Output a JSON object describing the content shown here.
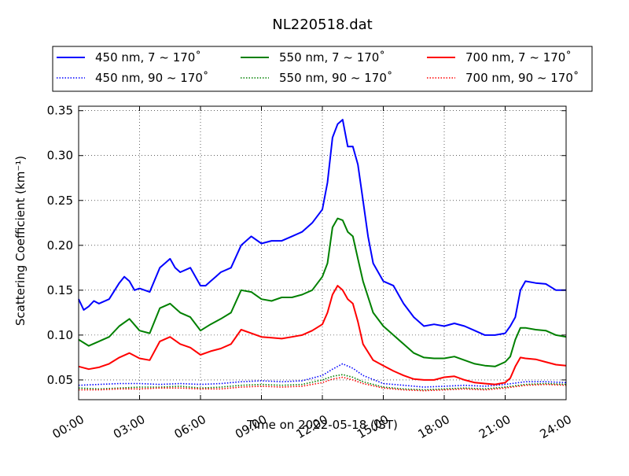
{
  "chart_data": {
    "type": "line",
    "title": "NL220518.dat",
    "xlabel": "Time on 2022-05-18 (JST)",
    "ylabel": "Scattering Coefficient (km⁻¹)",
    "xlim": [
      0,
      24
    ],
    "ylim": [
      0.028,
      0.355
    ],
    "xticks": [
      {
        "value": 0,
        "label": "00:00"
      },
      {
        "value": 3,
        "label": "03:00"
      },
      {
        "value": 6,
        "label": "06:00"
      },
      {
        "value": 9,
        "label": "09:00"
      },
      {
        "value": 12,
        "label": "12:00"
      },
      {
        "value": 15,
        "label": "15:00"
      },
      {
        "value": 18,
        "label": "18:00"
      },
      {
        "value": 21,
        "label": "21:00"
      },
      {
        "value": 24,
        "label": "24:00"
      }
    ],
    "yticks": [
      {
        "value": 0.05,
        "label": "0.05"
      },
      {
        "value": 0.1,
        "label": "0.10"
      },
      {
        "value": 0.15,
        "label": "0.15"
      },
      {
        "value": 0.2,
        "label": "0.20"
      },
      {
        "value": 0.25,
        "label": "0.25"
      },
      {
        "value": 0.3,
        "label": "0.30"
      },
      {
        "value": 0.35,
        "label": "0.35"
      }
    ],
    "grid": true,
    "legend_position": "top",
    "series": [
      {
        "name": "450 nm, 7 ~ 170˚",
        "color": "#0000ff",
        "style": "solid",
        "x": [
          0,
          0.25,
          0.5,
          0.75,
          1,
          1.5,
          2,
          2.25,
          2.5,
          2.75,
          3,
          3.5,
          4,
          4.25,
          4.5,
          4.75,
          5,
          5.5,
          6,
          6.25,
          6.5,
          6.75,
          7,
          7.5,
          8,
          8.5,
          9,
          9.5,
          10,
          10.5,
          11,
          11.5,
          12,
          12.25,
          12.5,
          12.75,
          13,
          13.25,
          13.5,
          13.75,
          14,
          14.25,
          14.5,
          15,
          15.5,
          16,
          16.5,
          17,
          17.5,
          18,
          18.5,
          19,
          19.5,
          20,
          20.5,
          21,
          21.25,
          21.5,
          21.75,
          22,
          22.5,
          23,
          23.5,
          24
        ],
        "y": [
          0.14,
          0.128,
          0.132,
          0.138,
          0.135,
          0.14,
          0.158,
          0.165,
          0.16,
          0.15,
          0.152,
          0.148,
          0.175,
          0.18,
          0.185,
          0.175,
          0.17,
          0.175,
          0.155,
          0.155,
          0.16,
          0.165,
          0.17,
          0.175,
          0.2,
          0.21,
          0.202,
          0.205,
          0.205,
          0.21,
          0.215,
          0.225,
          0.24,
          0.27,
          0.32,
          0.335,
          0.34,
          0.31,
          0.31,
          0.29,
          0.25,
          0.21,
          0.18,
          0.16,
          0.155,
          0.135,
          0.12,
          0.11,
          0.112,
          0.11,
          0.113,
          0.11,
          0.105,
          0.1,
          0.1,
          0.102,
          0.11,
          0.12,
          0.15,
          0.16,
          0.158,
          0.157,
          0.15,
          0.15
        ]
      },
      {
        "name": "450 nm, 90 ~ 170˚",
        "color": "#0000ff",
        "style": "dotted",
        "x": [
          0,
          1,
          2,
          3,
          4,
          5,
          6,
          7,
          8,
          9,
          10,
          11,
          12,
          12.5,
          13,
          13.5,
          14,
          15,
          16,
          17,
          18,
          19,
          20,
          21,
          22,
          23,
          24
        ],
        "y": [
          0.044,
          0.045,
          0.046,
          0.046,
          0.045,
          0.046,
          0.045,
          0.046,
          0.048,
          0.049,
          0.048,
          0.049,
          0.055,
          0.062,
          0.068,
          0.063,
          0.055,
          0.046,
          0.044,
          0.042,
          0.043,
          0.044,
          0.043,
          0.045,
          0.048,
          0.048,
          0.047
        ]
      },
      {
        "name": "550 nm, 7 ~ 170˚",
        "color": "#008000",
        "style": "solid",
        "x": [
          0,
          0.5,
          1,
          1.5,
          2,
          2.5,
          3,
          3.5,
          4,
          4.5,
          5,
          5.5,
          6,
          6.5,
          7,
          7.5,
          8,
          8.5,
          9,
          9.5,
          10,
          10.5,
          11,
          11.5,
          12,
          12.25,
          12.5,
          12.75,
          13,
          13.25,
          13.5,
          13.75,
          14,
          14.5,
          15,
          15.5,
          16,
          16.5,
          17,
          17.5,
          18,
          18.5,
          19,
          19.5,
          20,
          20.5,
          21,
          21.25,
          21.5,
          21.75,
          22,
          22.5,
          23,
          23.5,
          24
        ],
        "y": [
          0.095,
          0.088,
          0.093,
          0.098,
          0.11,
          0.118,
          0.105,
          0.102,
          0.13,
          0.135,
          0.125,
          0.12,
          0.105,
          0.112,
          0.118,
          0.125,
          0.15,
          0.148,
          0.14,
          0.138,
          0.142,
          0.142,
          0.145,
          0.15,
          0.165,
          0.18,
          0.22,
          0.23,
          0.228,
          0.215,
          0.21,
          0.185,
          0.16,
          0.125,
          0.11,
          0.1,
          0.09,
          0.08,
          0.075,
          0.074,
          0.074,
          0.076,
          0.072,
          0.068,
          0.066,
          0.065,
          0.07,
          0.076,
          0.095,
          0.108,
          0.108,
          0.106,
          0.105,
          0.1,
          0.098
        ]
      },
      {
        "name": "550 nm, 90 ~ 170˚",
        "color": "#008000",
        "style": "dotted",
        "x": [
          0,
          1,
          2,
          3,
          4,
          5,
          6,
          7,
          8,
          9,
          10,
          11,
          12,
          12.5,
          13,
          13.5,
          14,
          15,
          16,
          17,
          18,
          19,
          20,
          21,
          22,
          23,
          24
        ],
        "y": [
          0.041,
          0.04,
          0.041,
          0.042,
          0.042,
          0.043,
          0.041,
          0.042,
          0.044,
          0.045,
          0.044,
          0.045,
          0.05,
          0.054,
          0.056,
          0.053,
          0.048,
          0.042,
          0.04,
          0.039,
          0.04,
          0.041,
          0.04,
          0.042,
          0.045,
          0.046,
          0.045
        ]
      },
      {
        "name": "700 nm, 7 ~ 170˚",
        "color": "#ff0000",
        "style": "solid",
        "x": [
          0,
          0.5,
          1,
          1.5,
          2,
          2.5,
          3,
          3.5,
          4,
          4.5,
          5,
          5.5,
          6,
          6.5,
          7,
          7.5,
          8,
          8.5,
          9,
          9.5,
          10,
          10.5,
          11,
          11.5,
          12,
          12.25,
          12.5,
          12.75,
          13,
          13.25,
          13.5,
          13.75,
          14,
          14.5,
          15,
          15.5,
          16,
          16.5,
          17,
          17.5,
          18,
          18.5,
          19,
          19.5,
          20,
          20.5,
          21,
          21.25,
          21.5,
          21.75,
          22,
          22.5,
          23,
          23.5,
          24
        ],
        "y": [
          0.065,
          0.062,
          0.064,
          0.068,
          0.075,
          0.08,
          0.074,
          0.072,
          0.093,
          0.098,
          0.09,
          0.086,
          0.078,
          0.082,
          0.085,
          0.09,
          0.106,
          0.102,
          0.098,
          0.097,
          0.096,
          0.098,
          0.1,
          0.105,
          0.112,
          0.125,
          0.145,
          0.155,
          0.15,
          0.14,
          0.135,
          0.115,
          0.09,
          0.072,
          0.066,
          0.06,
          0.055,
          0.051,
          0.05,
          0.05,
          0.053,
          0.054,
          0.05,
          0.047,
          0.046,
          0.045,
          0.047,
          0.052,
          0.065,
          0.075,
          0.074,
          0.073,
          0.07,
          0.067,
          0.066
        ]
      },
      {
        "name": "700 nm, 90 ~ 170˚",
        "color": "#ff0000",
        "style": "dotted",
        "x": [
          0,
          1,
          2,
          3,
          4,
          5,
          6,
          7,
          8,
          9,
          10,
          11,
          12,
          12.5,
          13,
          13.5,
          14,
          15,
          16,
          17,
          18,
          19,
          20,
          21,
          22,
          23,
          24
        ],
        "y": [
          0.039,
          0.039,
          0.04,
          0.04,
          0.041,
          0.041,
          0.04,
          0.04,
          0.042,
          0.043,
          0.042,
          0.043,
          0.047,
          0.051,
          0.053,
          0.05,
          0.046,
          0.041,
          0.039,
          0.038,
          0.039,
          0.04,
          0.039,
          0.041,
          0.044,
          0.045,
          0.044
        ]
      }
    ]
  }
}
